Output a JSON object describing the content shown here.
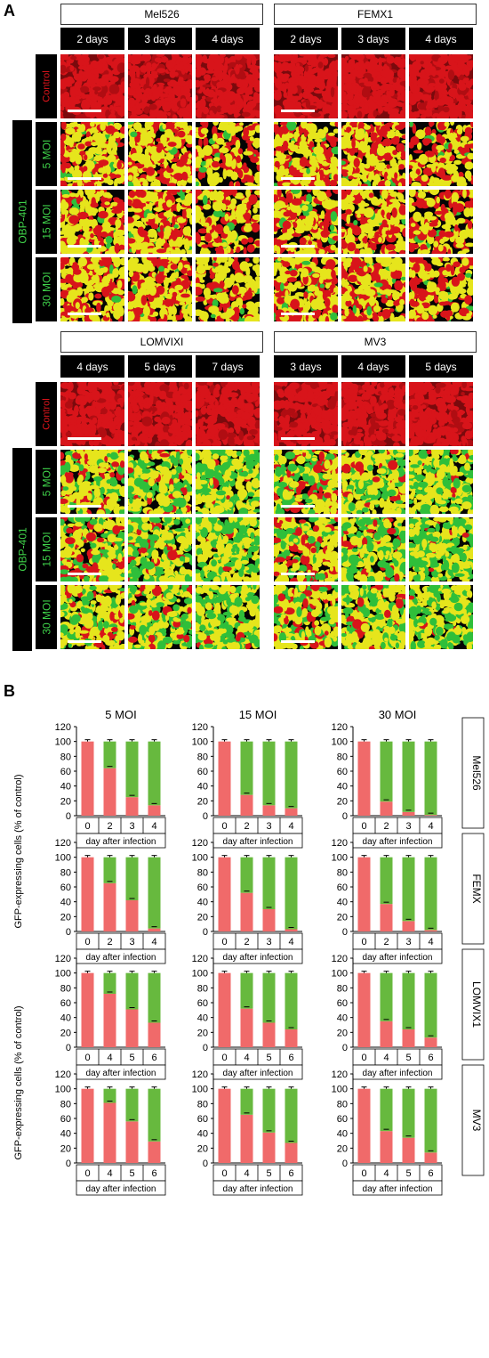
{
  "panel_a": {
    "label": "A",
    "treatment_label": "OBP-401",
    "row_labels": [
      "Control",
      "5 MOI",
      "15 MOI",
      "30 MOI"
    ],
    "blocks": [
      {
        "lines": [
          {
            "name": "Mel526",
            "days": [
              "2 days",
              "3 days",
              "4 days"
            ]
          },
          {
            "name": "FEMX1",
            "days": [
              "2 days",
              "3 days",
              "4 days"
            ]
          }
        ]
      },
      {
        "lines": [
          {
            "name": "LOMVIXI",
            "days": [
              "4 days",
              "5 days",
              "7 days"
            ]
          },
          {
            "name": "MV3",
            "days": [
              "3 days",
              "4 days",
              "5 days"
            ]
          }
        ]
      }
    ]
  },
  "panel_b": {
    "label": "B",
    "ylabel": "GFP-expressing cells (% of control)",
    "xlabel": "day after infection",
    "columns": [
      "5 MOI",
      "15 MOI",
      "30 MOI"
    ],
    "row_labels": [
      "Mel526",
      "FEMX",
      "LOMVIX1",
      "MV3"
    ],
    "yticks": [
      "0",
      "20",
      "40",
      "60",
      "80",
      "100",
      "120"
    ]
  },
  "colors": {
    "red_bar": "#f06a6a",
    "green_bar": "#67b93e",
    "micro_red": "#d8141a",
    "micro_yellow": "#e6e51c",
    "micro_green": "#2fbf3a"
  },
  "chart_data": {
    "type": "bar",
    "stacked": true,
    "ylim": [
      0,
      120
    ],
    "xlabel": "day after infection",
    "ylabel": "GFP-expressing cells (% of control)",
    "panels": [
      {
        "row": "Mel526",
        "moi": "5 MOI",
        "categories": [
          "0",
          "2",
          "3",
          "4"
        ],
        "series": [
          {
            "name": "",
            "color": "red",
            "values": [
              100,
              64,
              25,
              14
            ]
          },
          {
            "name": "",
            "color": "green",
            "values": [
              0,
              36,
              75,
              86
            ]
          }
        ]
      },
      {
        "row": "Mel526",
        "moi": "15 MOI",
        "categories": [
          "0",
          "2",
          "3",
          "4"
        ],
        "series": [
          {
            "name": "",
            "color": "red",
            "values": [
              100,
              28,
              14,
              10
            ]
          },
          {
            "name": "",
            "color": "green",
            "values": [
              0,
              72,
              86,
              90
            ]
          }
        ]
      },
      {
        "row": "Mel526",
        "moi": "30 MOI",
        "categories": [
          "0",
          "2",
          "3",
          "4"
        ],
        "series": [
          {
            "name": "",
            "color": "red",
            "values": [
              100,
              19,
              5,
              1
            ]
          },
          {
            "name": "",
            "color": "green",
            "values": [
              0,
              81,
              95,
              99
            ]
          }
        ]
      },
      {
        "row": "FEMX",
        "moi": "5 MOI",
        "categories": [
          "0",
          "2",
          "3",
          "4"
        ],
        "series": [
          {
            "name": "",
            "color": "red",
            "values": [
              100,
              65,
              42,
              4
            ]
          },
          {
            "name": "",
            "color": "green",
            "values": [
              0,
              35,
              58,
              96
            ]
          }
        ]
      },
      {
        "row": "FEMX",
        "moi": "15 MOI",
        "categories": [
          "0",
          "2",
          "3",
          "4"
        ],
        "series": [
          {
            "name": "",
            "color": "red",
            "values": [
              100,
              52,
              30,
              3
            ]
          },
          {
            "name": "",
            "color": "green",
            "values": [
              0,
              48,
              70,
              97
            ]
          }
        ]
      },
      {
        "row": "FEMX",
        "moi": "30 MOI",
        "categories": [
          "0",
          "2",
          "3",
          "4"
        ],
        "series": [
          {
            "name": "",
            "color": "red",
            "values": [
              100,
              37,
              14,
              2
            ]
          },
          {
            "name": "",
            "color": "green",
            "values": [
              0,
              63,
              86,
              98
            ]
          }
        ]
      },
      {
        "row": "LOMVIX1",
        "moi": "5 MOI",
        "categories": [
          "0",
          "4",
          "5",
          "6"
        ],
        "series": [
          {
            "name": "",
            "color": "red",
            "values": [
              100,
              72,
              51,
              33
            ]
          },
          {
            "name": "",
            "color": "green",
            "values": [
              0,
              28,
              49,
              67
            ]
          }
        ]
      },
      {
        "row": "LOMVIX1",
        "moi": "15 MOI",
        "categories": [
          "0",
          "4",
          "5",
          "6"
        ],
        "series": [
          {
            "name": "",
            "color": "red",
            "values": [
              100,
              52,
              33,
              24
            ]
          },
          {
            "name": "",
            "color": "green",
            "values": [
              0,
              48,
              67,
              76
            ]
          }
        ]
      },
      {
        "row": "LOMVIX1",
        "moi": "30 MOI",
        "categories": [
          "0",
          "4",
          "5",
          "6"
        ],
        "series": [
          {
            "name": "",
            "color": "red",
            "values": [
              100,
              35,
              24,
              13
            ]
          },
          {
            "name": "",
            "color": "green",
            "values": [
              0,
              65,
              76,
              87
            ]
          }
        ]
      },
      {
        "row": "MV3",
        "moi": "5 MOI",
        "categories": [
          "0",
          "4",
          "5",
          "6"
        ],
        "series": [
          {
            "name": "",
            "color": "red",
            "values": [
              100,
              81,
              56,
              29
            ]
          },
          {
            "name": "",
            "color": "green",
            "values": [
              0,
              19,
              44,
              71
            ]
          }
        ]
      },
      {
        "row": "MV3",
        "moi": "15 MOI",
        "categories": [
          "0",
          "4",
          "5",
          "6"
        ],
        "series": [
          {
            "name": "",
            "color": "red",
            "values": [
              100,
              65,
              41,
              27
            ]
          },
          {
            "name": "",
            "color": "green",
            "values": [
              0,
              35,
              59,
              73
            ]
          }
        ]
      },
      {
        "row": "MV3",
        "moi": "30 MOI",
        "categories": [
          "0",
          "4",
          "5",
          "6"
        ],
        "series": [
          {
            "name": "",
            "color": "red",
            "values": [
              100,
              43,
              34,
              14
            ]
          },
          {
            "name": "",
            "color": "green",
            "values": [
              0,
              57,
              66,
              86
            ]
          }
        ]
      }
    ]
  }
}
